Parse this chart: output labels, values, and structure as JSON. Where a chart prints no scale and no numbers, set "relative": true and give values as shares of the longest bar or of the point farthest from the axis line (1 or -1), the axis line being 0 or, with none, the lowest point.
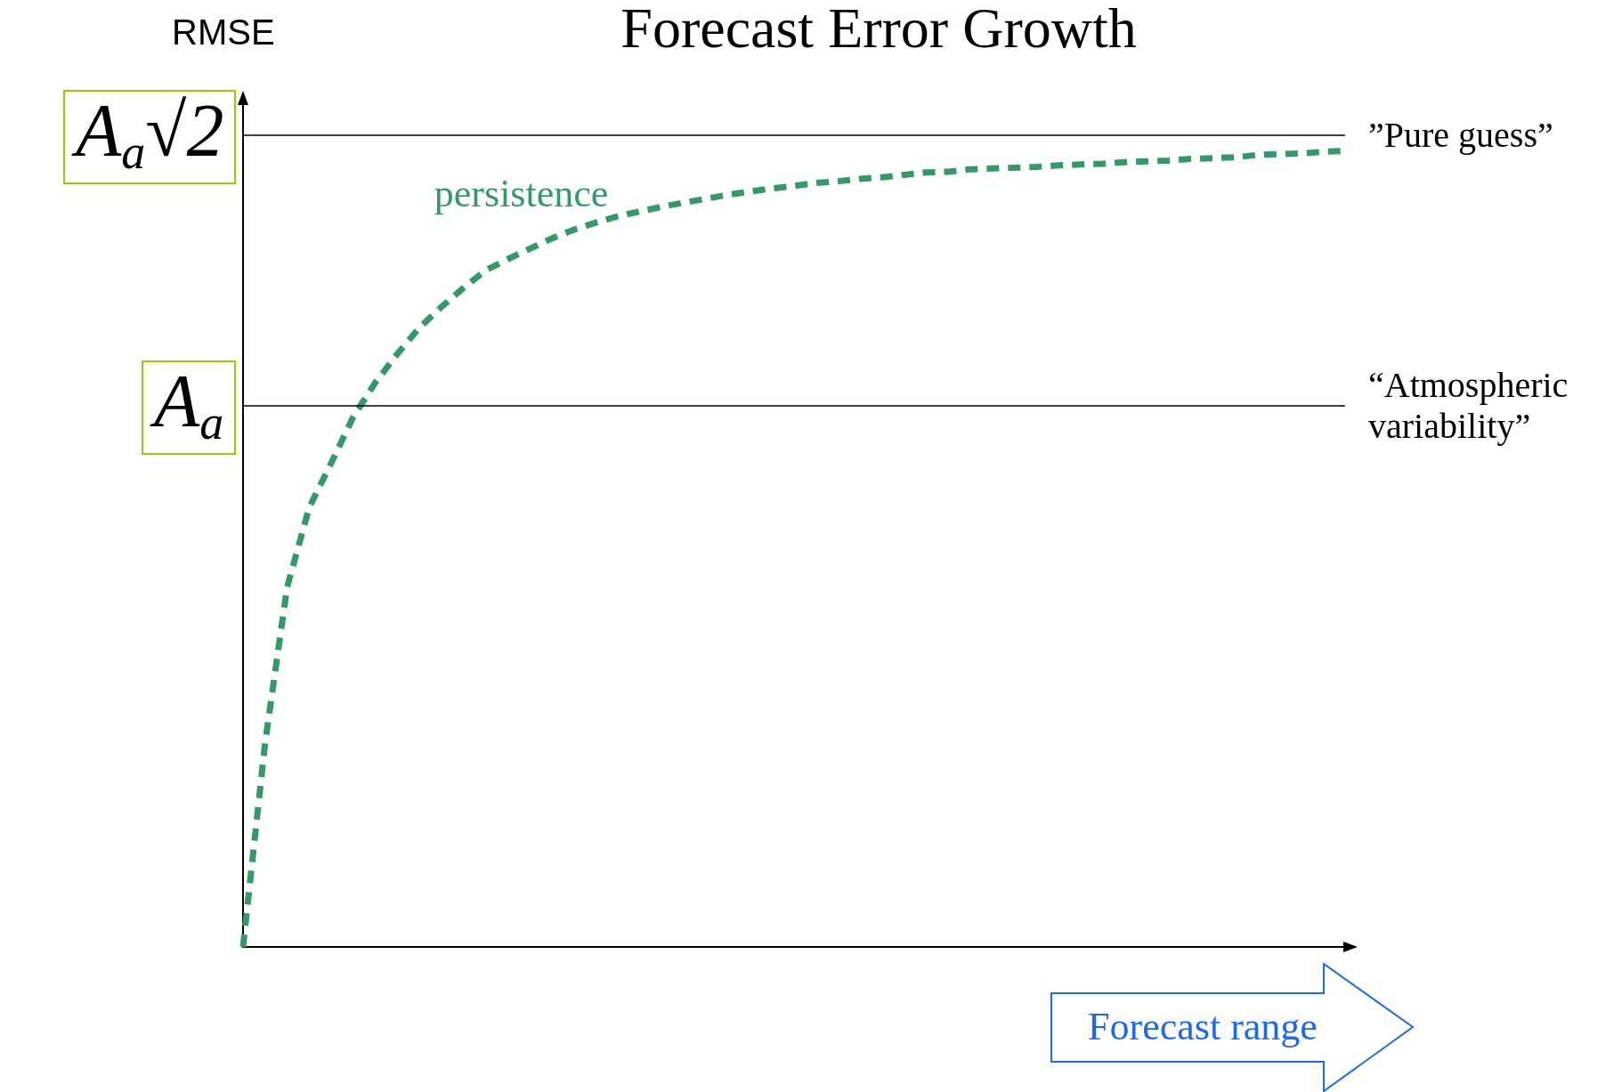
{
  "chart_data": {
    "type": "line",
    "title": "Forecast Error Growth",
    "xlabel": "Forecast range",
    "ylabel": "RMSE",
    "relative": true,
    "categories": [
      null,
      null,
      null,
      null,
      null,
      null,
      null,
      null,
      null,
      null,
      null,
      null,
      null,
      null,
      null,
      null,
      null,
      null,
      null,
      null,
      null,
      null,
      null,
      null,
      null,
      null,
      null,
      null,
      null,
      null,
      null,
      null,
      null,
      null,
      null,
      null,
      null,
      null,
      null,
      null,
      null,
      null,
      null,
      null,
      null,
      null,
      null,
      null,
      null,
      null,
      null
    ],
    "series": [
      {
        "name": "persistence",
        "color": "#339966",
        "values": [
          0,
          0.256,
          0.452,
          0.552,
          0.608,
          0.666,
          0.709,
          0.745,
          0.778,
          0.804,
          0.828,
          0.85,
          0.864,
          0.877,
          0.89,
          0.901,
          0.91,
          0.918,
          0.924,
          0.93,
          0.935,
          0.94,
          0.945,
          0.949,
          0.953,
          0.956,
          0.96,
          0.962,
          0.965,
          0.967,
          0.97,
          0.973,
          0.974,
          0.977,
          0.978,
          0.979,
          0.98,
          0.982,
          0.983,
          0.984,
          0.986,
          0.987,
          0.988,
          0.99,
          0.991,
          0.992,
          0.995,
          0.996,
          0.997,
          0.999,
          1
        ]
      }
    ],
    "ref_lines": [
      {
        "axis": "y",
        "value": 1.018,
        "label": "”Pure guess”",
        "color": "#000000"
      },
      {
        "axis": "y",
        "value": 0.678,
        "label": "“Atmospheric variability”",
        "color": "#000000"
      }
    ],
    "annotations": [
      "A$_{a}$√2",
      "A$_{a}$"
    ],
    "line_style": "dashed",
    "marker": "none"
  }
}
